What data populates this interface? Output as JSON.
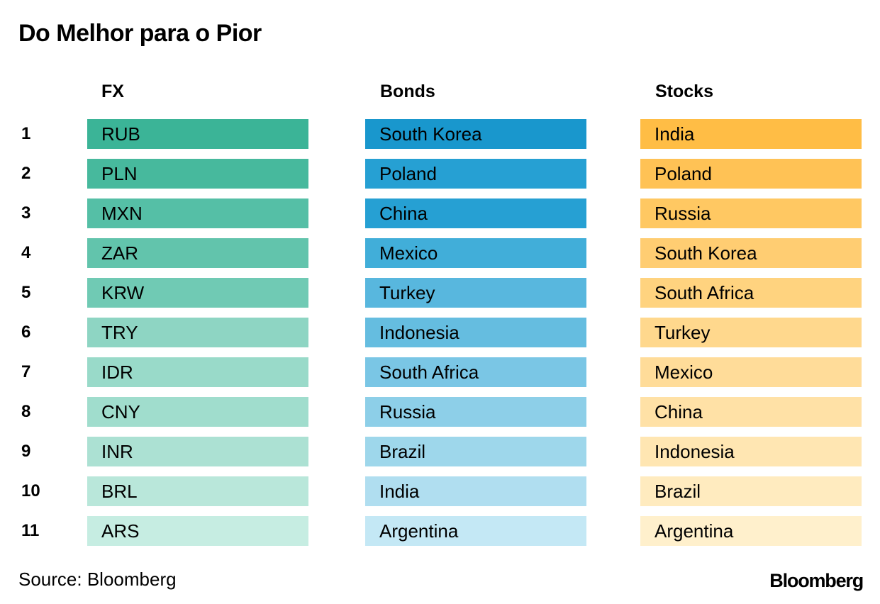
{
  "chart_data": {
    "type": "table",
    "title": "Do Melhor para o Pior",
    "ranks": [
      "1",
      "2",
      "3",
      "4",
      "5",
      "6",
      "7",
      "8",
      "9",
      "10",
      "11"
    ],
    "columns": [
      {
        "name": "FX",
        "items": [
          "RUB",
          "PLN",
          "MXN",
          "ZAR",
          "KRW",
          "TRY",
          "IDR",
          "CNY",
          "INR",
          "BRL",
          "ARS"
        ],
        "colors": [
          "#3bb497",
          "#47b99d",
          "#55bfa6",
          "#62c4ac",
          "#70cab4",
          "#8ed5c3",
          "#99dac9",
          "#a0ddcd",
          "#ace1d3",
          "#b9e7da",
          "#c6ede2"
        ]
      },
      {
        "name": "Bonds",
        "items": [
          "South Korea",
          "Poland",
          "China",
          "Mexico",
          "Turkey",
          "Indonesia",
          "South Africa",
          "Russia",
          "Brazil",
          "India",
          "Argentina"
        ],
        "colors": [
          "#1997cd",
          "#26a0d3",
          "#26a0d3",
          "#41aed9",
          "#58b7de",
          "#65bde0",
          "#7ac6e5",
          "#8dcfe8",
          "#9ed7eb",
          "#b0def0",
          "#c4e8f5"
        ]
      },
      {
        "name": "Stocks",
        "items": [
          "India",
          "Poland",
          "Russia",
          "South Korea",
          "South Africa",
          "Turkey",
          "Mexico",
          "China",
          "Indonesia",
          "Brazil",
          "Argentina"
        ],
        "colors": [
          "#ffbd45",
          "#ffc255",
          "#ffc862",
          "#ffcd72",
          "#ffd37f",
          "#ffd88d",
          "#ffdc99",
          "#ffe1a6",
          "#ffe6b2",
          "#ffebbf",
          "#fff0cc"
        ]
      }
    ]
  },
  "footer": {
    "source": "Source: Bloomberg",
    "brand": "Bloomberg"
  }
}
